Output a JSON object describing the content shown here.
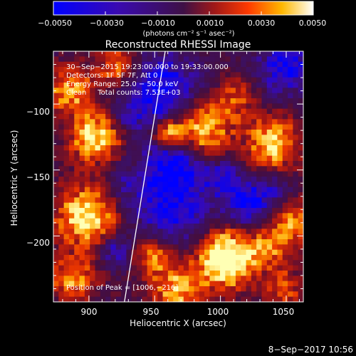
{
  "chart_data": {
    "type": "heatmap",
    "title": "Reconstructed RHESSI Image",
    "xlabel": "Heliocentric X (arcsec)",
    "ylabel": "Heliocentric Y (arcsec)",
    "xlim": [
      873,
      1063
    ],
    "ylim": [
      -250,
      -60
    ],
    "xticks": [
      900,
      950,
      1000,
      1050
    ],
    "yticks": [
      -100,
      -150,
      -200
    ],
    "xtick_labels": [
      "900",
      "950",
      "1000",
      "1050"
    ],
    "ytick_labels": [
      "−100",
      "−150",
      "−200"
    ],
    "colorbar": {
      "min": -0.005,
      "max": 0.005,
      "ticks": [
        -0.005,
        -0.003,
        -0.001,
        0.001,
        0.003,
        0.005
      ],
      "tick_labels": [
        "−0.0050",
        "−0.0030",
        "−0.0010",
        "0.0010",
        "0.0030",
        "0.0050"
      ],
      "unit_label": "(photons cm⁻² s⁻¹ asec⁻²)"
    },
    "annotations": [
      "30−Sep−2015 19:23:00.000 to 19:33:00.000",
      "Detectors: 1F 5F 7F, Att 0",
      "Energy Range: 25.0 − 50.0 keV",
      "Clean     Total counts: 7.53E+03"
    ],
    "peak_label": "Position of Peak = [1006,−216]",
    "peak": [
      1006,
      -216
    ],
    "limb_line": [
      [
        927,
        -250
      ],
      [
        958,
        -60
      ]
    ],
    "grid_size": 48,
    "blobs": [
      {
        "x": 955,
        "y": -92,
        "s": 20,
        "a": -1.0
      },
      {
        "x": 965,
        "y": -145,
        "s": 14,
        "a": -0.85
      },
      {
        "x": 963,
        "y": -178,
        "s": 20,
        "a": -0.8
      },
      {
        "x": 930,
        "y": -160,
        "s": 12,
        "a": -0.35
      },
      {
        "x": 960,
        "y": -122,
        "s": 8,
        "a": 1.0
      },
      {
        "x": 985,
        "y": -118,
        "s": 16,
        "a": 1.05
      },
      {
        "x": 905,
        "y": -125,
        "s": 14,
        "a": 1.0
      },
      {
        "x": 885,
        "y": -90,
        "s": 12,
        "a": 0.8
      },
      {
        "x": 922,
        "y": -72,
        "s": 12,
        "a": 0.7
      },
      {
        "x": 898,
        "y": -185,
        "s": 16,
        "a": 1.05
      },
      {
        "x": 888,
        "y": -232,
        "s": 12,
        "a": 0.75
      },
      {
        "x": 1040,
        "y": -130,
        "s": 14,
        "a": 1.0
      },
      {
        "x": 1055,
        "y": -190,
        "s": 12,
        "a": 0.75
      },
      {
        "x": 1035,
        "y": -210,
        "s": 10,
        "a": 0.6
      },
      {
        "x": 1005,
        "y": -217,
        "s": 15,
        "a": 1.4
      },
      {
        "x": 1048,
        "y": -240,
        "s": 10,
        "a": 0.6
      },
      {
        "x": 1020,
        "y": -175,
        "s": 12,
        "a": -0.85
      },
      {
        "x": 1040,
        "y": -165,
        "s": 10,
        "a": -0.4
      },
      {
        "x": 1050,
        "y": -72,
        "s": 14,
        "a": -0.85
      },
      {
        "x": 1013,
        "y": -95,
        "s": 10,
        "a": 0.5
      },
      {
        "x": 920,
        "y": -212,
        "s": 8,
        "a": -0.6
      },
      {
        "x": 968,
        "y": -240,
        "s": 14,
        "a": 0.85
      },
      {
        "x": 948,
        "y": -215,
        "s": 10,
        "a": 0.7
      },
      {
        "x": 1000,
        "y": -155,
        "s": 10,
        "a": -0.6
      },
      {
        "x": 928,
        "y": -110,
        "s": 8,
        "a": -0.3
      }
    ]
  },
  "footer": {
    "timestamp": "8−Sep−2017 10:56"
  }
}
